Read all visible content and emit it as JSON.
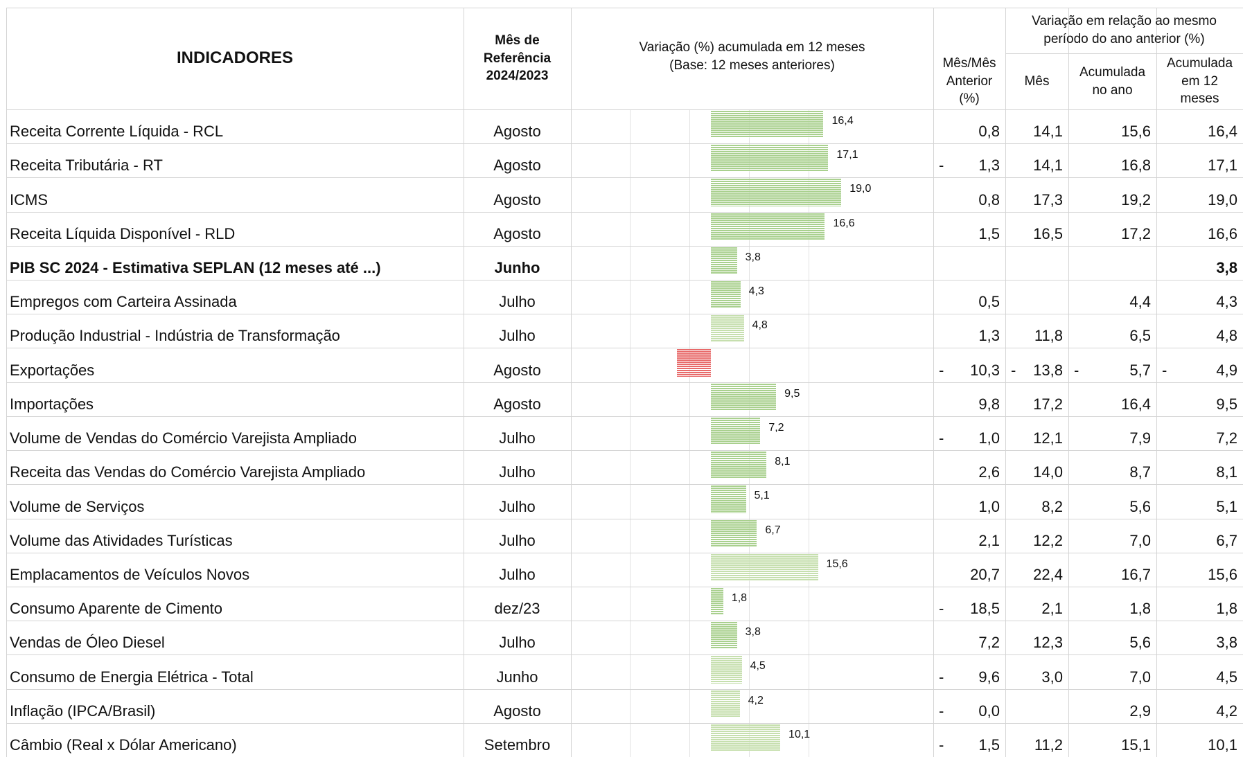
{
  "header": {
    "indicators": "INDICADORES",
    "reference_month": "Mês de\nReferência\n2024/2023",
    "accumulated_12m": "Variação (%) acumulada em 12 meses\n(Base: 12 meses anteriores)",
    "month_over_month": "Mês/Mês\nAnterior\n(%)",
    "same_period_group": "Variação em relação ao mesmo\nperíodo do ano anterior (%)",
    "month": "Mês",
    "year_to_date": "Acumulada\nno ano",
    "last_12m": "Acumulada\nem 12\nmeses"
  },
  "bar_colors": {
    "dark": "#a9d08e",
    "light": "#c6dfae",
    "negative": "#e86a6a"
  },
  "rows": [
    {
      "indicator": "Receita Corrente Líquida - RCL",
      "month_ref": "Agosto",
      "bar": 16.4,
      "bar_label": "16,4",
      "bar_color": "dark",
      "mm": "0,8",
      "month": "14,1",
      "ytd": "15,6",
      "m12": "16,4"
    },
    {
      "indicator": "Receita Tributária - RT",
      "month_ref": "Agosto",
      "bar": 17.1,
      "bar_label": "17,1",
      "bar_color": "dark",
      "mm": "- 1,3",
      "month": "14,1",
      "ytd": "16,8",
      "m12": "17,1"
    },
    {
      "indicator": "ICMS",
      "month_ref": "Agosto",
      "bar": 19.0,
      "bar_label": "19,0",
      "bar_color": "dark",
      "mm": "0,8",
      "month": "17,3",
      "ytd": "19,2",
      "m12": "19,0"
    },
    {
      "indicator": "Receita Líquida Disponível - RLD",
      "month_ref": "Agosto",
      "bar": 16.6,
      "bar_label": "16,6",
      "bar_color": "dark",
      "mm": "1,5",
      "month": "16,5",
      "ytd": "17,2",
      "m12": "16,6"
    },
    {
      "indicator": "PIB  SC 2024 - Estimativa SEPLAN  (12 meses até ...)",
      "month_ref": "Junho",
      "bar": 3.8,
      "bar_label": "3,8",
      "bar_color": "dark",
      "mm": null,
      "month": null,
      "ytd": null,
      "m12": "3,8",
      "bold": true
    },
    {
      "indicator": "Empregos com Carteira Assinada",
      "month_ref": "Julho",
      "bar": 4.3,
      "bar_label": "4,3",
      "bar_color": "dark",
      "mm": "0,5",
      "month": null,
      "ytd": "4,4",
      "m12": "4,3"
    },
    {
      "indicator": "Produção Industrial - Indústria de Transformação",
      "month_ref": "Julho",
      "bar": 4.8,
      "bar_label": "4,8",
      "bar_color": "light",
      "mm": "1,3",
      "month": "11,8",
      "ytd": "6,5",
      "m12": "4,8"
    },
    {
      "indicator": "Exportações",
      "month_ref": "Agosto",
      "bar": -4.9,
      "bar_color": "negative",
      "mm": "- 10,3",
      "month": "- 13,8",
      "ytd": "- 5,7",
      "m12": "- 4,9"
    },
    {
      "indicator": "Importações",
      "month_ref": "Agosto",
      "bar": 9.5,
      "bar_label": "9,5",
      "bar_color": "dark",
      "mm": "9,8",
      "month": "17,2",
      "ytd": "16,4",
      "m12": "9,5"
    },
    {
      "indicator": "Volume de Vendas do Comércio Varejista Ampliado",
      "month_ref": "Julho",
      "bar": 7.2,
      "bar_label": "7,2",
      "bar_color": "dark",
      "mm": "- 1,0",
      "month": "12,1",
      "ytd": "7,9",
      "m12": "7,2"
    },
    {
      "indicator": "Receita das Vendas do Comércio Varejista Ampliado",
      "month_ref": "Julho",
      "bar": 8.1,
      "bar_label": "8,1",
      "bar_color": "dark",
      "mm": "2,6",
      "month": "14,0",
      "ytd": "8,7",
      "m12": "8,1"
    },
    {
      "indicator": "Volume de Serviços",
      "month_ref": "Julho",
      "bar": 5.1,
      "bar_label": "5,1",
      "bar_color": "dark",
      "mm": "1,0",
      "month": "8,2",
      "ytd": "5,6",
      "m12": "5,1"
    },
    {
      "indicator": "Volume das Atividades Turísticas",
      "month_ref": "Julho",
      "bar": 6.7,
      "bar_label": "6,7",
      "bar_color": "dark",
      "mm": "2,1",
      "month": "12,2",
      "ytd": "7,0",
      "m12": "6,7"
    },
    {
      "indicator": "Emplacamentos de Veículos Novos",
      "month_ref": "Julho",
      "bar": 15.6,
      "bar_label": "15,6",
      "bar_color": "light",
      "mm": "20,7",
      "month": "22,4",
      "ytd": "16,7",
      "m12": "15,6"
    },
    {
      "indicator": "Consumo Aparente de Cimento",
      "month_ref": "dez/23",
      "bar": 1.8,
      "bar_label": "1,8",
      "bar_color": "dark",
      "mm": "- 18,5",
      "month": "2,1",
      "ytd": "1,8",
      "m12": "1,8"
    },
    {
      "indicator": "Vendas de Óleo Diesel",
      "month_ref": "Julho",
      "bar": 3.8,
      "bar_label": "3,8",
      "bar_color": "dark",
      "mm": "7,2",
      "month": "12,3",
      "ytd": "5,6",
      "m12": "3,8"
    },
    {
      "indicator": "Consumo  de Energia Elétrica - Total",
      "month_ref": "Junho",
      "bar": 4.5,
      "bar_label": "4,5",
      "bar_color": "light",
      "mm": "- 9,6",
      "month": "3,0",
      "ytd": "7,0",
      "m12": "4,5"
    },
    {
      "indicator": "Inflação (IPCA/Brasil)",
      "month_ref": "Agosto",
      "bar": 4.2,
      "bar_label": "4,2",
      "bar_color": "light",
      "mm": "- 0,0",
      "month": null,
      "ytd": "2,9",
      "m12": "4,2"
    },
    {
      "indicator": "Câmbio (Real x Dólar Americano)",
      "month_ref": "Setembro",
      "bar": 10.1,
      "bar_label": "10,1",
      "bar_color": "light",
      "mm": "- 1,5",
      "month": "11,2",
      "ytd": "15,1",
      "m12": "10,1"
    }
  ]
}
